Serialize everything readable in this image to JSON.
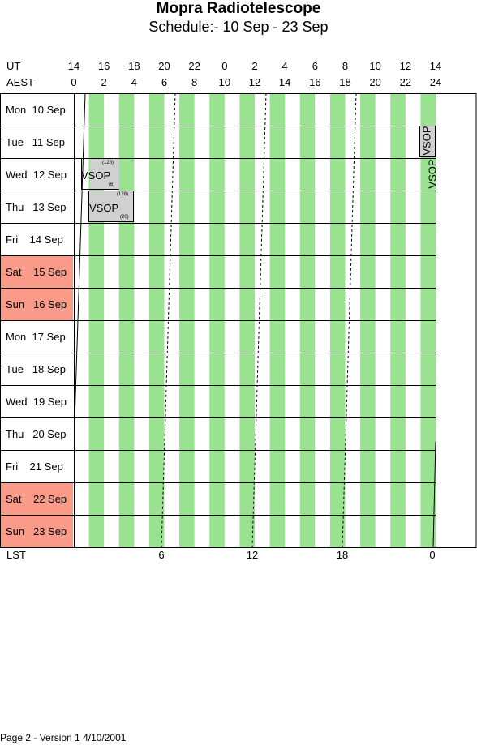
{
  "title": "Mopra Radiotelescope",
  "subtitle": "Schedule:- 10 Sep - 23 Sep",
  "header": {
    "ut_label": "UT",
    "aest_label": "AEST",
    "lst_label": "LST",
    "ut_ticks": [
      "14",
      "16",
      "18",
      "20",
      "22",
      "0",
      "2",
      "4",
      "6",
      "8",
      "10",
      "12",
      "14"
    ],
    "aest_ticks": [
      "0",
      "2",
      "4",
      "6",
      "8",
      "10",
      "12",
      "14",
      "16",
      "18",
      "20",
      "22",
      "24"
    ],
    "lst_ticks": [
      "6",
      "12",
      "18",
      "0"
    ]
  },
  "days": [
    {
      "label": "Mon  10 Sep",
      "weekend": false
    },
    {
      "label": "Tue   11 Sep",
      "weekend": false
    },
    {
      "label": "Wed  12 Sep",
      "weekend": false
    },
    {
      "label": "Thu   13 Sep",
      "weekend": false
    },
    {
      "label": "Fri    14 Sep",
      "weekend": false
    },
    {
      "label": "Sat    15 Sep",
      "weekend": true
    },
    {
      "label": "Sun   16 Sep",
      "weekend": true
    },
    {
      "label": "Mon  17 Sep",
      "weekend": false
    },
    {
      "label": "Tue   18 Sep",
      "weekend": false
    },
    {
      "label": "Wed  19 Sep",
      "weekend": false
    },
    {
      "label": "Thu   20 Sep",
      "weekend": false
    },
    {
      "label": "Fri    21 Sep",
      "weekend": false
    },
    {
      "label": "Sat    22 Sep",
      "weekend": true
    },
    {
      "label": "Sun   23 Sep",
      "weekend": true
    }
  ],
  "bookings": [
    {
      "name": "VSOP",
      "code_top": "(128)",
      "code_bottom": "(6)"
    },
    {
      "name": "VSOP",
      "code_top": "(128)",
      "code_bottom": "(20)"
    },
    {
      "name": "VSOP"
    },
    {
      "name": "VSOP"
    }
  ],
  "colors": {
    "stripe": "#98e290",
    "booking": "#d0d0d0",
    "weekend": "#fa9a88"
  },
  "footer": "Page 2 - Version 1  4/10/2001"
}
